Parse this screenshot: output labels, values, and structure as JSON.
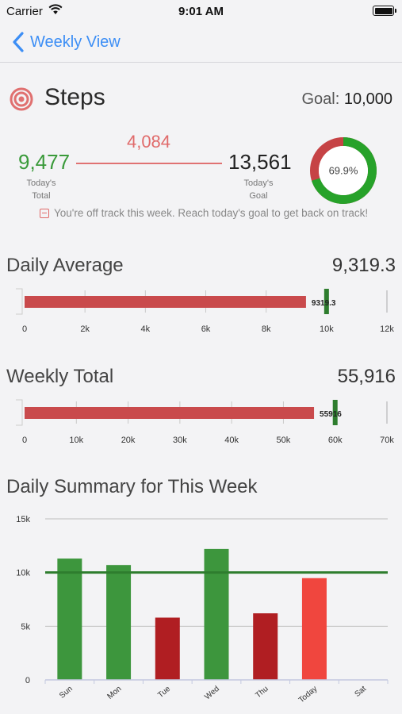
{
  "status": {
    "carrier": "Carrier",
    "time": "9:01 AM"
  },
  "nav": {
    "back_label": "Weekly View"
  },
  "header": {
    "title": "Steps",
    "goal_prefix": "Goal:",
    "goal_value": "10,000"
  },
  "today": {
    "total": "9,477",
    "total_caption_1": "Today's",
    "total_caption_2": "Total",
    "difference": "4,084",
    "goal": "13,561",
    "goal_caption_1": "Today's",
    "goal_caption_2": "Goal",
    "percent": "69.9%",
    "percent_value": 0.699,
    "warning": "You're off track this week.  Reach today's goal to get back on track!"
  },
  "daily_average": {
    "title": "Daily Average",
    "value": "9,319.3",
    "bar_label": "9319.3",
    "bar_value": 9319.3,
    "goal_marker": 10000,
    "max": 12000,
    "ticks": [
      0,
      2000,
      4000,
      6000,
      8000,
      10000,
      12000
    ],
    "tick_labels": [
      "0",
      "2k",
      "4k",
      "6k",
      "8k",
      "10k",
      "12k"
    ]
  },
  "weekly_total": {
    "title": "Weekly Total",
    "value": "55,916",
    "bar_label": "55916",
    "bar_value": 55916,
    "goal_marker": 60000,
    "max": 70000,
    "ticks": [
      0,
      10000,
      20000,
      30000,
      40000,
      50000,
      60000,
      70000
    ],
    "tick_labels": [
      "0",
      "10k",
      "20k",
      "30k",
      "40k",
      "50k",
      "60k",
      "70k"
    ]
  },
  "summary": {
    "title": "Daily Summary for This Week"
  },
  "colors": {
    "green": "#3d963d",
    "dark_red": "#b01e22",
    "light_red": "#f0463e",
    "bar_red": "#c94a4c",
    "goal_green": "#2e7d2e",
    "blue": "#3c8ef5"
  },
  "chart_data": {
    "type": "bar",
    "categories": [
      "Sun",
      "Mon",
      "Tue",
      "Wed",
      "Thu",
      "Today",
      "Sat"
    ],
    "values": [
      11300,
      10700,
      5800,
      12200,
      6200,
      9477,
      null
    ],
    "bar_colors": [
      "green",
      "green",
      "dark_red",
      "green",
      "dark_red",
      "light_red",
      null
    ],
    "goal_line": 10000,
    "ylim": [
      0,
      15000
    ],
    "yticks": [
      0,
      5000,
      10000,
      15000
    ],
    "ytick_labels": [
      "0",
      "5k",
      "10k",
      "15k"
    ],
    "grid": true,
    "title": "",
    "xlabel": "",
    "ylabel": ""
  }
}
